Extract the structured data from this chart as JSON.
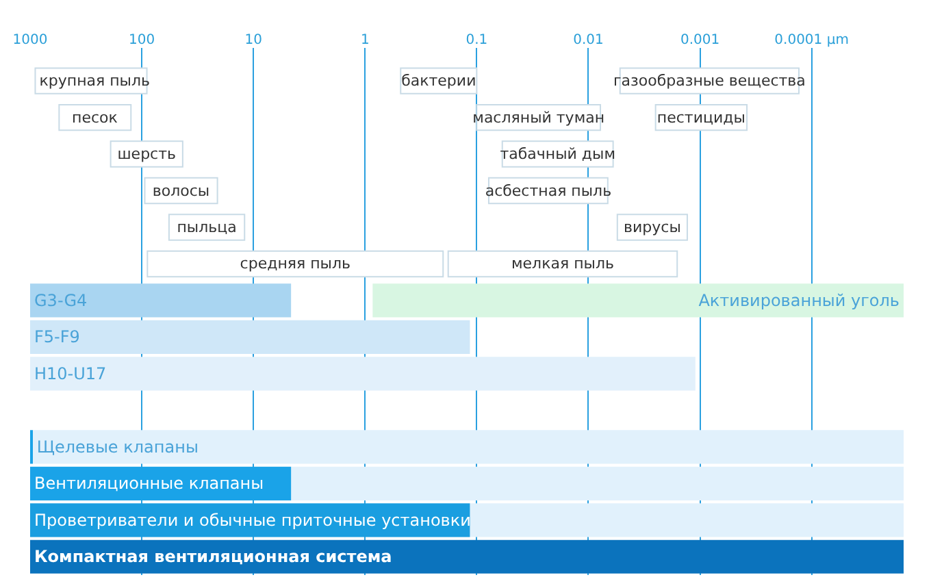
{
  "chart_data": {
    "type": "bar",
    "orientation": "horizontal",
    "log": "x",
    "grid": "x",
    "tick_labels": "x",
    "categories": [
      null,
      null,
      null,
      null,
      null,
      null,
      null,
      null,
      null,
      null,
      null,
      null,
      null,
      null
    ],
    "xlim": [
      1000,
      1.5e-05
    ],
    "xticks": [
      1000,
      100,
      10,
      1,
      0.1,
      0.01,
      0.001,
      {
        "value": 0.0001,
        "label": "0.0001 µm"
      }
    ],
    "series": [
      {
        "color": "#ffffff",
        "values": [
          810,
          425,
          147,
          73,
          45,
          88.8,
          null,
          null,
          null,
          null,
          null,
          null,
          null,
          null
        ],
        "base": [
          90,
          125,
          43,
          21,
          12,
          0.2,
          null,
          null,
          null,
          null,
          null,
          null,
          null,
          null
        ],
        "value_labels": [
          "крупная пыль",
          "песок",
          "шерсть",
          "волосы",
          "пыльца",
          "средняя пыль",
          null,
          null,
          null,
          null,
          null,
          null,
          null,
          null
        ]
      },
      {
        "color": "#ffffff",
        "values": [
          0.38,
          0.0922,
          0.053,
          0.0713,
          0.0042,
          0.1784,
          null,
          null,
          null,
          null,
          null,
          null,
          null,
          null
        ],
        "base": [
          0.1,
          0.0078,
          0.006,
          0.0067,
          0.0013,
          0.0016,
          null,
          null,
          null,
          null,
          null,
          null,
          null,
          null
        ],
        "value_labels": [
          "бактерии",
          "масляный туман",
          "табачный дым",
          "асбестная пыль",
          "вирусы",
          "мелкая пыль",
          null,
          null,
          null,
          null,
          null,
          null,
          null,
          null
        ]
      },
      {
        "color": "#ffffff",
        "values": [
          0.00507,
          0.00212,
          null,
          null,
          null,
          null,
          null,
          null,
          null,
          null,
          null,
          null,
          null,
          null
        ],
        "base": [
          0.00013,
          0.00038,
          null,
          null,
          null,
          null,
          null,
          null,
          null,
          null,
          null,
          null,
          null,
          null
        ],
        "value_labels": [
          "газообразные вещества",
          "пестициды",
          null,
          null,
          null,
          null,
          null,
          null,
          null,
          null,
          null,
          null,
          null,
          null
        ]
      },
      {
        "colors": [
          null,
          null,
          null,
          null,
          null,
          null,
          "#a9d5f1",
          "#cfe7f8",
          "#e2f0fb",
          null,
          null,
          null,
          null,
          null
        ],
        "values": [
          null,
          null,
          null,
          null,
          null,
          null,
          995.4,
          999.885,
          999.9989,
          null,
          null,
          null,
          null,
          null
        ],
        "base": [
          null,
          null,
          null,
          null,
          null,
          null,
          4.6,
          0.115,
          0.0011,
          null,
          null,
          null,
          null,
          null
        ],
        "value_labels": [
          null,
          null,
          null,
          null,
          null,
          null,
          "G3-G4",
          "F5-F9",
          "H10-U17",
          null,
          null,
          null,
          null,
          null
        ]
      },
      {
        "color": "#d8f6e2",
        "values": [
          null,
          null,
          null,
          null,
          null,
          null,
          0.855,
          null,
          null,
          null,
          null,
          null,
          null,
          null
        ],
        "base": [
          null,
          null,
          null,
          null,
          null,
          null,
          1.5e-05,
          null,
          null,
          null,
          null,
          null,
          null,
          null
        ],
        "value_labels": [
          null,
          null,
          null,
          null,
          null,
          null,
          "Активированный уголь",
          null,
          null,
          null,
          null,
          null,
          null,
          null
        ]
      },
      {
        "color": "#e1f1fc",
        "values": [
          null,
          null,
          null,
          null,
          null,
          null,
          null,
          null,
          null,
          null,
          949.999985,
          4.599985,
          0.114985,
          null
        ],
        "base": [
          null,
          null,
          null,
          null,
          null,
          null,
          null,
          null,
          null,
          null,
          1.5e-05,
          1.5e-05,
          1.5e-05,
          null
        ],
        "value_labels": [
          null,
          null,
          null,
          null,
          null,
          null,
          null,
          null,
          null,
          null,
          "Щелевые клапаны",
          null,
          null,
          null
        ]
      },
      {
        "colors": [
          null,
          null,
          null,
          null,
          null,
          null,
          null,
          null,
          null,
          null,
          "#1aa3e8",
          "#1aa3e8",
          "#1a9ee0",
          "#0b73bd"
        ],
        "values": [
          null,
          null,
          null,
          null,
          null,
          null,
          null,
          null,
          null,
          null,
          50,
          995.4,
          999.885,
          999.999985
        ],
        "base": [
          null,
          null,
          null,
          null,
          null,
          null,
          null,
          null,
          null,
          null,
          950,
          4.6,
          0.115,
          1.5e-05
        ],
        "value_labels": [
          null,
          null,
          null,
          null,
          null,
          null,
          null,
          null,
          null,
          null,
          null,
          "Вентиляционные клапаны",
          "Проветриватели и обычные приточные установки",
          "Компактная вентиляционная система"
        ]
      }
    ]
  }
}
